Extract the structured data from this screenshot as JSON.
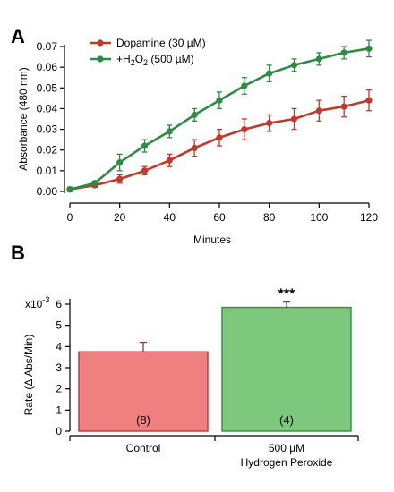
{
  "panels": {
    "a": "A",
    "b": "B"
  },
  "colors": {
    "dopamine": "#c0392b",
    "peroxide": "#2e8b44",
    "control_bar": "#f08080",
    "peroxide_bar": "#7dc87d",
    "control_edge": "#c03030",
    "peroxide_edge": "#2e8b44",
    "error_a_dop": "#c0392b",
    "error_a_per": "#2e8b44",
    "error_b": "#8b3a3a"
  },
  "chart_data": [
    {
      "type": "line",
      "panel": "A",
      "xlabel": "Minutes",
      "ylabel": "Absorbance (480 nm)",
      "xlim": [
        0,
        120
      ],
      "ylim": [
        0,
        0.07
      ],
      "x_ticks": [
        "0",
        "20",
        "40",
        "60",
        "80",
        "100",
        "120"
      ],
      "y_ticks": [
        "0.00",
        "0.01",
        "0.02",
        "0.03",
        "0.04",
        "0.05",
        "0.06",
        "0.07"
      ],
      "legend_position": "top-left",
      "x": [
        0,
        10,
        20,
        30,
        40,
        50,
        60,
        70,
        80,
        90,
        100,
        110,
        120
      ],
      "series": [
        {
          "name": "Dopamine (30 µM)",
          "legend": {
            "main": "Dopamine (30 µM)"
          },
          "color": "#c0392b",
          "values": [
            0.001,
            0.003,
            0.006,
            0.01,
            0.015,
            0.021,
            0.026,
            0.03,
            0.033,
            0.035,
            0.039,
            0.041,
            0.044
          ],
          "errors": [
            0.001,
            0.001,
            0.002,
            0.002,
            0.003,
            0.004,
            0.004,
            0.005,
            0.004,
            0.005,
            0.005,
            0.005,
            0.005
          ]
        },
        {
          "name": "+H2O2 (500 µM)",
          "legend": {
            "pre": "+H",
            "sub": "2",
            "mid": "O",
            "sub2": "2",
            "post": " (500 µM)"
          },
          "color": "#2e8b44",
          "values": [
            0.001,
            0.004,
            0.014,
            0.022,
            0.029,
            0.037,
            0.044,
            0.051,
            0.057,
            0.061,
            0.064,
            0.067,
            0.069
          ],
          "errors": [
            0.001,
            0.001,
            0.004,
            0.003,
            0.003,
            0.003,
            0.004,
            0.004,
            0.004,
            0.003,
            0.003,
            0.003,
            0.004
          ]
        }
      ]
    },
    {
      "type": "bar",
      "panel": "B",
      "ylabel": "Rate (Δ Abs/Min)",
      "y_exponent": "x10",
      "y_exponent_power": "-3",
      "ylim": [
        0,
        6
      ],
      "y_ticks": [
        "6",
        "5",
        "4",
        "3",
        "2",
        "1",
        "0"
      ],
      "categories": [
        "Control",
        "500 µM\nHydrogen Peroxide"
      ],
      "category_lines": [
        [
          "Control"
        ],
        [
          "500 µM",
          "Hydrogen Peroxide"
        ]
      ],
      "values": [
        3.75,
        5.85
      ],
      "errors": [
        0.45,
        0.25
      ],
      "n_labels": [
        "(8)",
        "(4)"
      ],
      "significance": [
        "",
        "***"
      ]
    }
  ]
}
